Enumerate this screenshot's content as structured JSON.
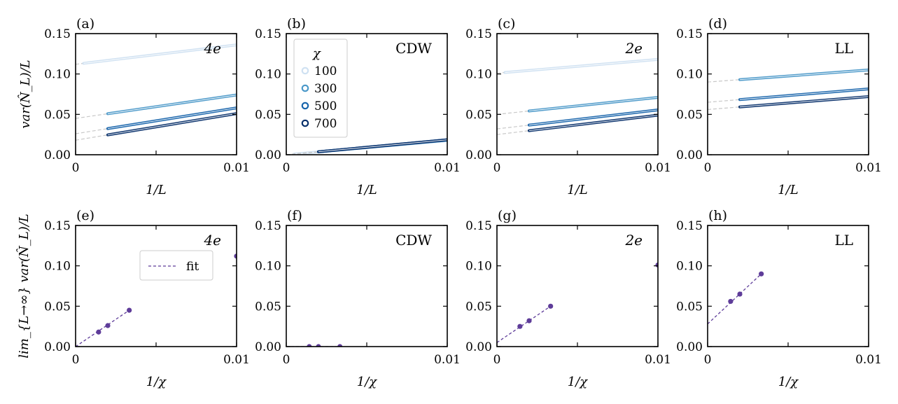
{
  "chart_data": [
    {
      "panel": "(a)",
      "type": "line",
      "tag": "4e",
      "xlabel": "1/L",
      "ylabel": "var(N̂_L)/L",
      "xlim": [
        0,
        0.01
      ],
      "ylim": [
        0,
        0.15
      ],
      "xticks": [
        "0",
        "0.01"
      ],
      "yticks": [
        "0.00",
        "0.05",
        "0.10",
        "0.15"
      ],
      "series": [
        {
          "chi": "100",
          "intercept": 0.112,
          "slope": 2.4,
          "x_start": 0.0005
        },
        {
          "chi": "300",
          "intercept": 0.045,
          "slope": 2.9,
          "x_start": 0.002
        },
        {
          "chi": "500",
          "intercept": 0.026,
          "slope": 3.2,
          "x_start": 0.002
        },
        {
          "chi": "700",
          "intercept": 0.018,
          "slope": 3.3,
          "x_start": 0.002
        }
      ]
    },
    {
      "panel": "(b)",
      "type": "line",
      "tag": "CDW",
      "xlabel": "1/L",
      "ylabel": "",
      "xlim": [
        0,
        0.01
      ],
      "ylim": [
        0,
        0.15
      ],
      "xticks": [
        "0",
        "0.01"
      ],
      "yticks": [
        "0.00",
        "0.05",
        "0.10",
        "0.15"
      ],
      "series": [
        {
          "chi": "100",
          "intercept": 0.0,
          "slope": 1.75,
          "x_start": 0.0005
        },
        {
          "chi": "300",
          "intercept": 0.0,
          "slope": 1.8,
          "x_start": 0.002
        },
        {
          "chi": "500",
          "intercept": 0.0,
          "slope": 1.85,
          "x_start": 0.002
        },
        {
          "chi": "700",
          "intercept": 0.0,
          "slope": 1.85,
          "x_start": 0.002
        }
      ],
      "legend": {
        "title": "χ",
        "entries": [
          "100",
          "300",
          "500",
          "700"
        ],
        "placement": "top-left"
      }
    },
    {
      "panel": "(c)",
      "type": "line",
      "tag": "2e",
      "xlabel": "1/L",
      "ylabel": "",
      "xlim": [
        0,
        0.01
      ],
      "ylim": [
        0,
        0.15
      ],
      "xticks": [
        "0",
        "0.01"
      ],
      "yticks": [
        "0.00",
        "0.05",
        "0.10",
        "0.15"
      ],
      "series": [
        {
          "chi": "100",
          "intercept": 0.101,
          "slope": 1.7,
          "x_start": 0.0005
        },
        {
          "chi": "300",
          "intercept": 0.05,
          "slope": 2.1,
          "x_start": 0.002
        },
        {
          "chi": "500",
          "intercept": 0.032,
          "slope": 2.35,
          "x_start": 0.002
        },
        {
          "chi": "700",
          "intercept": 0.025,
          "slope": 2.4,
          "x_start": 0.002
        }
      ]
    },
    {
      "panel": "(d)",
      "type": "line",
      "tag": "LL",
      "xlabel": "1/L",
      "ylabel": "",
      "xlim": [
        0,
        0.01
      ],
      "ylim": [
        0,
        0.15
      ],
      "xticks": [
        "0",
        "0.01"
      ],
      "yticks": [
        "0.00",
        "0.05",
        "0.10",
        "0.15"
      ],
      "series": [
        {
          "chi": "300",
          "intercept": 0.09,
          "slope": 1.5,
          "x_start": 0.002
        },
        {
          "chi": "500",
          "intercept": 0.065,
          "slope": 1.65,
          "x_start": 0.002
        },
        {
          "chi": "700",
          "intercept": 0.056,
          "slope": 1.6,
          "x_start": 0.002
        }
      ]
    },
    {
      "panel": "(e)",
      "type": "scatter",
      "tag": "4e",
      "xlabel": "1/χ",
      "ylabel": "lim_{L→∞} var(N̂_L)/L",
      "xlim": [
        0,
        0.01
      ],
      "ylim": [
        0,
        0.15
      ],
      "xticks": [
        "0",
        "0.01"
      ],
      "yticks": [
        "0.00",
        "0.05",
        "0.10",
        "0.15"
      ],
      "points": {
        "x": [
          0.001429,
          0.002,
          0.003333,
          0.01
        ],
        "y": [
          0.018,
          0.026,
          0.045,
          0.112
        ]
      },
      "fit": {
        "x": [
          0.0,
          0.003333
        ],
        "y": [
          0.0,
          0.045
        ]
      },
      "legend": {
        "entries": [
          "fit"
        ],
        "placement": "center-left"
      }
    },
    {
      "panel": "(f)",
      "type": "scatter",
      "tag": "CDW",
      "xlabel": "1/χ",
      "ylabel": "",
      "xlim": [
        0,
        0.01
      ],
      "ylim": [
        0,
        0.15
      ],
      "xticks": [
        "0",
        "0.01"
      ],
      "yticks": [
        "0.00",
        "0.05",
        "0.10",
        "0.15"
      ],
      "points": {
        "x": [
          0.001429,
          0.002,
          0.003333
        ],
        "y": [
          0.0,
          0.0,
          0.0
        ]
      },
      "fit": {
        "x": [
          0.0,
          0.003333
        ],
        "y": [
          0.0,
          0.0
        ]
      }
    },
    {
      "panel": "(g)",
      "type": "scatter",
      "tag": "2e",
      "xlabel": "1/χ",
      "ylabel": "",
      "xlim": [
        0,
        0.01
      ],
      "ylim": [
        0,
        0.15
      ],
      "xticks": [
        "0",
        "0.01"
      ],
      "yticks": [
        "0.00",
        "0.05",
        "0.10",
        "0.15"
      ],
      "points": {
        "x": [
          0.001429,
          0.002,
          0.003333,
          0.01
        ],
        "y": [
          0.025,
          0.032,
          0.05,
          0.101
        ]
      },
      "fit": {
        "x": [
          0.0,
          0.003333
        ],
        "y": [
          0.005,
          0.05
        ]
      }
    },
    {
      "panel": "(h)",
      "type": "scatter",
      "tag": "LL",
      "xlabel": "1/χ",
      "ylabel": "",
      "xlim": [
        0,
        0.01
      ],
      "ylim": [
        0,
        0.15
      ],
      "xticks": [
        "0",
        "0.01"
      ],
      "yticks": [
        "0.00",
        "0.05",
        "0.10",
        "0.15"
      ],
      "points": {
        "x": [
          0.001429,
          0.002,
          0.003333
        ],
        "y": [
          0.056,
          0.065,
          0.09
        ]
      },
      "fit": {
        "x": [
          0.0,
          0.003333
        ],
        "y": [
          0.028,
          0.09
        ]
      }
    }
  ],
  "colors": {
    "chi_100": "#cfe1f2",
    "chi_300": "#4a98c9",
    "chi_500": "#1764ab",
    "chi_700": "#08306b",
    "extrapolation": "#c8c8c8",
    "fit": "#5e3c99",
    "points": "#5e3c99"
  }
}
